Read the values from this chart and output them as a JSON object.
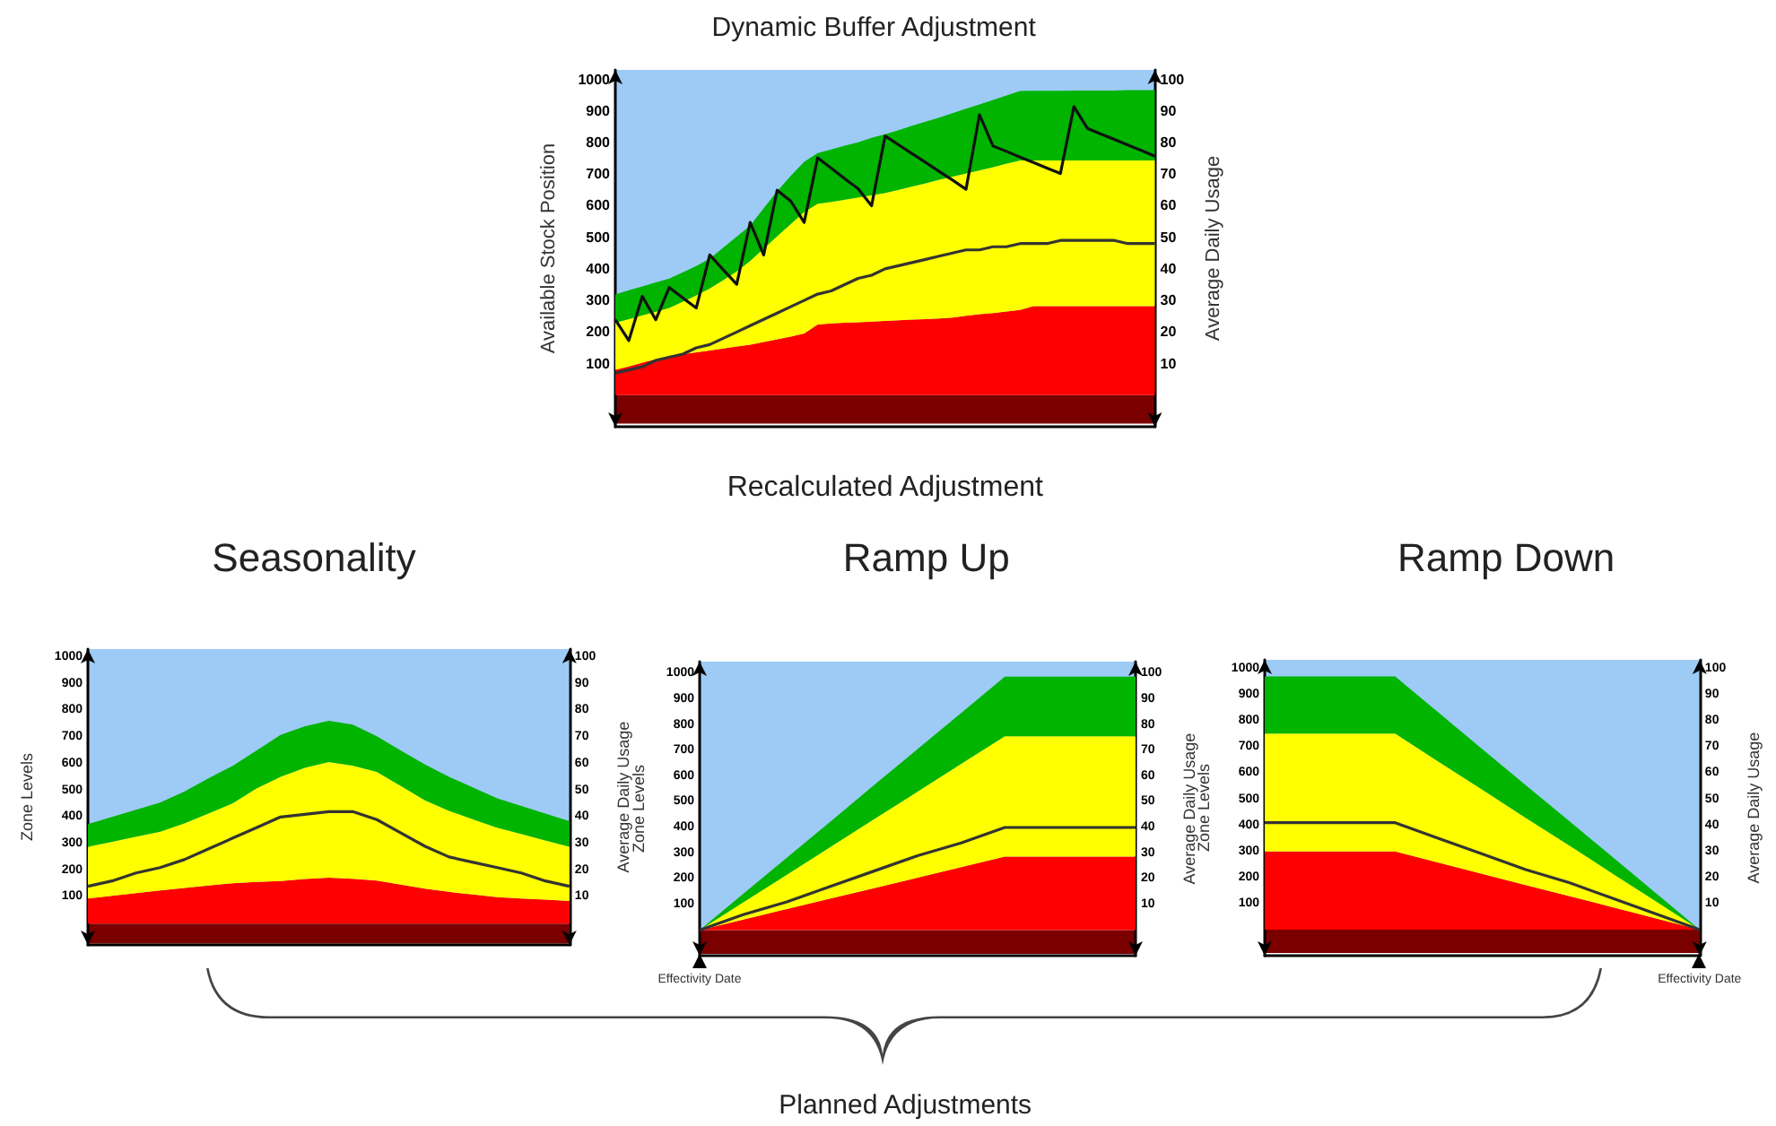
{
  "chart_data": [
    {
      "type": "area",
      "title": "Dynamic Buffer Adjustment",
      "xlabel": "Recalculated Adjustment",
      "ylabel": "Available Stock Position",
      "y2label": "Average Daily Usage",
      "stacked": true,
      "ylim": [
        -100,
        1030
      ],
      "yticks": [
        100,
        200,
        300,
        400,
        500,
        600,
        700,
        800,
        900,
        1000
      ],
      "y2lim": [
        -10,
        103
      ],
      "y2ticks": [
        10,
        20,
        30,
        40,
        50,
        60,
        70,
        80,
        90,
        100
      ],
      "categories": [
        null,
        null,
        null,
        null,
        null,
        null,
        null,
        null,
        null,
        null,
        null,
        null,
        null,
        null,
        null,
        null,
        null,
        null,
        null,
        null,
        null,
        null,
        null,
        null,
        null,
        null,
        null,
        null,
        null,
        null,
        null,
        null,
        null,
        null,
        null,
        null,
        null,
        null,
        null,
        null,
        null
      ],
      "bands": [
        {
          "axis": "y",
          "from": 0,
          "to": 1030,
          "color": "#9dcbf6"
        },
        {
          "axis": "y",
          "from": -90,
          "to": 0,
          "color": "#7a0000"
        }
      ],
      "series": [
        {
          "color": "#ff0000",
          "values": [
            80,
            91,
            103,
            114,
            125,
            130,
            136,
            141,
            148,
            154,
            160,
            168,
            177,
            185,
            195,
            224,
            227,
            229,
            231,
            233,
            235,
            237,
            239,
            241,
            243,
            246,
            251,
            256,
            260,
            265,
            270,
            282,
            282,
            282,
            282,
            282,
            282,
            282,
            282,
            282,
            282
          ]
        },
        {
          "color": "#ffff00",
          "values": [
            149,
            150,
            150,
            150,
            151,
            166,
            180,
            197,
            216,
            238,
            265,
            296,
            326,
            357,
            385,
            382,
            385,
            390,
            395,
            400,
            405,
            413,
            422,
            430,
            439,
            446,
            451,
            456,
            462,
            468,
            473,
            461,
            461,
            461,
            461,
            461,
            461,
            461,
            461,
            461,
            461
          ]
        },
        {
          "color": "#00b400",
          "values": [
            90,
            91,
            91,
            93,
            93,
            93,
            93,
            94,
            103,
            110,
            112,
            128,
            143,
            152,
            159,
            161,
            166,
            171,
            175,
            182,
            186,
            189,
            192,
            195,
            197,
            201,
            205,
            209,
            213,
            216,
            220,
            221,
            221,
            221,
            222,
            222,
            222,
            222,
            223,
            223,
            223
          ]
        },
        {
          "type": "line",
          "axis": "y2",
          "color": "#333333",
          "values": [
            7,
            8,
            9,
            11,
            12,
            13,
            15,
            16,
            18,
            20,
            22,
            24,
            26,
            28,
            30,
            32,
            33,
            35,
            37,
            38,
            40,
            41,
            42,
            43,
            44,
            45,
            46,
            46,
            47,
            47,
            48,
            48,
            48,
            49,
            49,
            49,
            49,
            49,
            48,
            48,
            48
          ]
        },
        {
          "type": "line",
          "color": "#111111",
          "values": [
            239,
            173,
            313,
            239,
            341,
            308,
            276,
            444,
            397,
            351,
            547,
            444,
            649,
            615,
            547,
            752,
            719,
            686,
            654,
            600,
            821,
            793,
            765,
            737,
            709,
            681,
            652,
            888,
            789,
            772,
            754,
            737,
            719,
            702,
            914,
            845,
            827,
            810,
            792,
            775,
            757
          ]
        }
      ]
    },
    {
      "type": "area",
      "title": "Seasonality",
      "ylabel": "Zone Levels",
      "y2label": "Average Daily Usage",
      "stacked": true,
      "ylim": [
        -80,
        1030
      ],
      "yticks": [
        100,
        200,
        300,
        400,
        500,
        600,
        700,
        800,
        900,
        1000
      ],
      "y2lim": [
        -8,
        103
      ],
      "y2ticks": [
        10,
        20,
        30,
        40,
        50,
        60,
        70,
        80,
        90,
        100
      ],
      "categories": [
        null,
        null,
        null,
        null,
        null,
        null,
        null,
        null,
        null,
        null,
        null,
        null,
        null,
        null,
        null,
        null,
        null,
        null,
        null,
        null,
        null
      ],
      "bands": [
        {
          "axis": "y",
          "from": 0,
          "to": 1030,
          "color": "#9dcbf6"
        },
        {
          "axis": "y",
          "from": -75,
          "to": 0,
          "color": "#7a0000"
        }
      ],
      "series": [
        {
          "color": "#ff0000",
          "values": [
            94,
            104,
            114,
            124,
            134,
            143,
            151,
            156,
            160,
            167,
            172,
            168,
            161,
            146,
            131,
            119,
            109,
            99,
            94,
            90,
            85
          ]
        },
        {
          "color": "#ffff00",
          "values": [
            194,
            203,
            212,
            221,
            242,
            270,
            300,
            351,
            391,
            417,
            434,
            425,
            408,
            370,
            331,
            304,
            282,
            261,
            242,
            222,
            203
          ]
        },
        {
          "color": "#00b400",
          "values": [
            85,
            93,
            101,
            109,
            119,
            132,
            140,
            142,
            157,
            156,
            155,
            154,
            134,
            133,
            135,
            128,
            119,
            110,
            105,
            101,
            96
          ]
        },
        {
          "type": "line",
          "axis": "y2",
          "color": "#333333",
          "values": [
            14,
            16,
            19,
            21,
            24,
            28,
            32,
            36,
            40,
            41,
            42,
            42,
            39,
            34,
            29,
            25,
            23,
            21,
            19,
            16,
            14
          ]
        }
      ]
    },
    {
      "type": "area",
      "title": "Ramp Up",
      "ylabel": "Zone Levels",
      "y2label": "Average Daily Usage",
      "stacked": true,
      "ylim": [
        -100,
        1047
      ],
      "yticks": [
        100,
        200,
        300,
        400,
        500,
        600,
        700,
        800,
        900,
        1000
      ],
      "y2lim": [
        -10,
        104.7
      ],
      "y2ticks": [
        10,
        20,
        30,
        40,
        50,
        60,
        70,
        80,
        90,
        100
      ],
      "categories": [
        "Effectivity Date",
        null,
        null,
        null,
        null,
        null,
        null,
        null,
        null,
        null,
        null
      ],
      "bands": [
        {
          "axis": "y",
          "from": 0,
          "to": 1047,
          "color": "#9dcbf6"
        },
        {
          "axis": "y",
          "from": -93,
          "to": 0,
          "color": "#7a0000"
        }
      ],
      "annotations": [
        "Planned Adjustments"
      ],
      "series": [
        {
          "color": "#ff0000",
          "values": [
            0,
            41,
            82,
            123,
            163,
            204,
            245,
            286,
            286,
            286,
            286
          ]
        },
        {
          "color": "#ffff00",
          "values": [
            0,
            67,
            134,
            201,
            269,
            336,
            403,
            470,
            470,
            470,
            470
          ]
        },
        {
          "color": "#00b400",
          "values": [
            0,
            33,
            66,
            99,
            133,
            166,
            199,
            232,
            232,
            232,
            232
          ]
        },
        {
          "type": "line",
          "axis": "y2",
          "color": "#333333",
          "values": [
            0,
            6,
            11,
            17,
            23,
            29,
            34,
            40,
            40,
            40,
            40
          ]
        }
      ]
    },
    {
      "type": "area",
      "title": "Ramp Down",
      "ylabel": "Zone Levels",
      "y2label": "Average Daily Usage",
      "stacked": true,
      "ylim": [
        -100,
        1035
      ],
      "yticks": [
        100,
        200,
        300,
        400,
        500,
        600,
        700,
        800,
        900,
        1000
      ],
      "y2lim": [
        -10,
        103.5
      ],
      "y2ticks": [
        10,
        20,
        30,
        40,
        50,
        60,
        70,
        80,
        90,
        100
      ],
      "categories": [
        null,
        null,
        null,
        null,
        null,
        null,
        null,
        null,
        null,
        null,
        "Effectivity Date"
      ],
      "bands": [
        {
          "axis": "y",
          "from": 0,
          "to": 1035,
          "color": "#9dcbf6"
        },
        {
          "axis": "y",
          "from": -90,
          "to": 0,
          "color": "#7a0000"
        }
      ],
      "series": [
        {
          "color": "#ff0000",
          "values": [
            300,
            300,
            300,
            300,
            257,
            214,
            171,
            129,
            86,
            43,
            0
          ]
        },
        {
          "color": "#ffff00",
          "values": [
            452,
            452,
            452,
            452,
            387,
            323,
            258,
            194,
            129,
            65,
            0
          ]
        },
        {
          "color": "#00b400",
          "values": [
            219,
            219,
            219,
            219,
            188,
            156,
            125,
            94,
            63,
            31,
            0
          ]
        },
        {
          "type": "line",
          "axis": "y2",
          "color": "#333333",
          "values": [
            41,
            41,
            41,
            41,
            35,
            29,
            23,
            18,
            12,
            6,
            0
          ]
        }
      ]
    }
  ]
}
